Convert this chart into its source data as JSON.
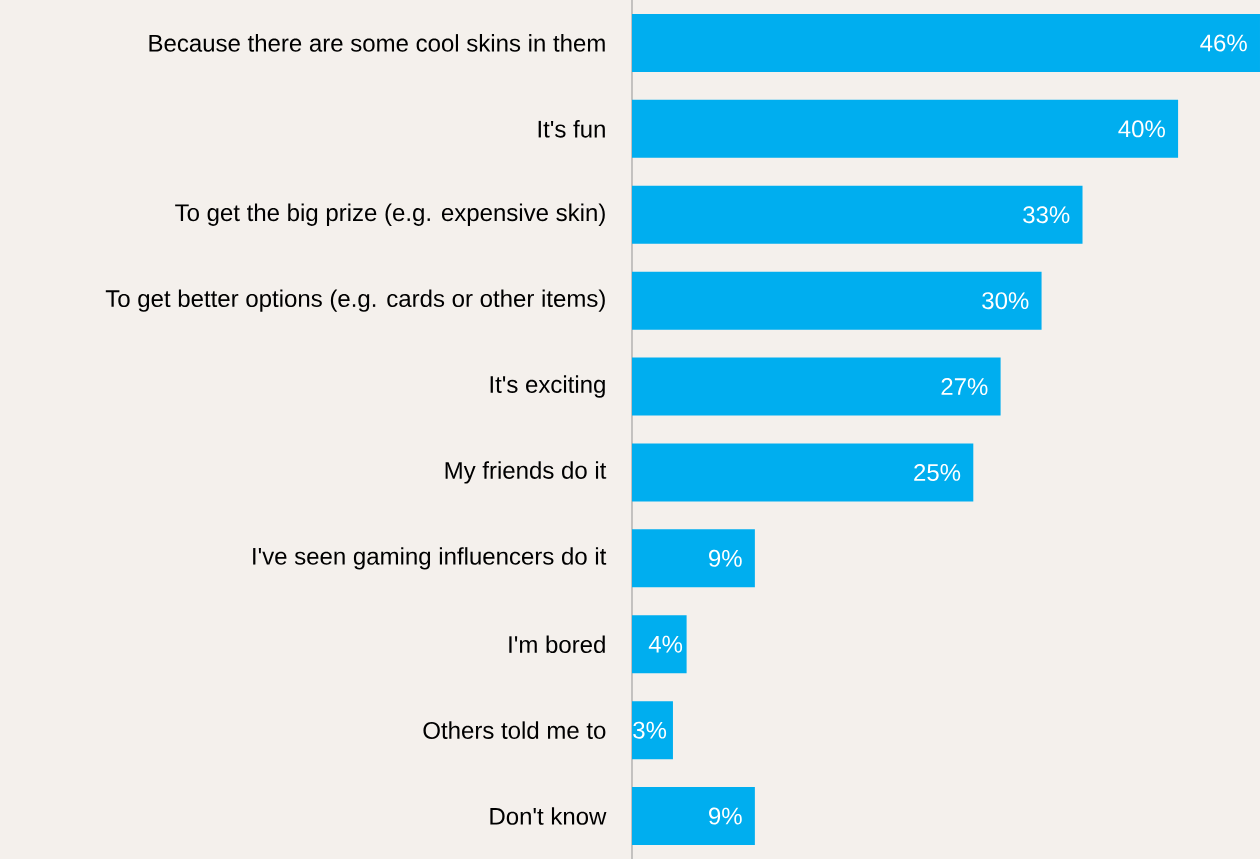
{
  "chart_data": {
    "type": "bar",
    "orientation": "horizontal",
    "color": "#00aeef",
    "categories": [
      "Because there are some cool skins in them",
      "It's fun",
      "To get the big prize (e.g. expensive skin)",
      "To get better options (e.g. cards or other items)",
      "It's exciting",
      "My friends do it",
      "I've seen gaming influencers do it",
      "I'm bored",
      "Others told me to",
      "Don't know"
    ],
    "values": [
      46,
      40,
      33,
      30,
      27,
      25,
      9,
      4,
      3,
      9
    ],
    "value_labels": [
      "46%",
      "40%",
      "33%",
      "30%",
      "27%",
      "25%",
      "9%",
      "4%",
      "3%",
      "9%"
    ]
  }
}
